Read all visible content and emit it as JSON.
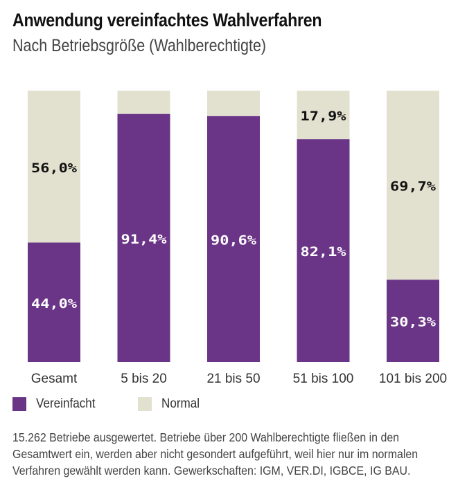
{
  "chart_data": {
    "type": "bar",
    "stacked": true,
    "percent": true,
    "title": "Anwendung vereinfachtes Wahlverfahren",
    "subtitle": "Nach Betriebsgröße (Wahlberechtigte)",
    "categories": [
      "Gesamt",
      "5 bis 20",
      "21 bis 50",
      "51 bis 100",
      "101 bis 200"
    ],
    "series": [
      {
        "name": "Vereinfacht",
        "color": "#6b3587",
        "values": [
          44.0,
          91.4,
          90.6,
          82.1,
          30.3
        ],
        "labels": [
          "44,0%",
          "91,4%",
          "90,6%",
          "82,1%",
          "30,3%"
        ]
      },
      {
        "name": "Normal",
        "color": "#e2e1cf",
        "values": [
          56.0,
          8.6,
          9.4,
          17.9,
          69.7
        ],
        "labels": [
          "56,0%",
          "",
          "",
          "17,9%",
          "69,7%"
        ]
      }
    ],
    "ylim": [
      0,
      100
    ],
    "grid": false,
    "legend_position": "bottom-left"
  },
  "footnote": {
    "lines": [
      "15.262 Betriebe ausgewertet. Betriebe über 200 Wahlberechtigte fließen in den",
      "Gesamtwert ein, werden aber nicht gesondert aufgeführt, weil hier nur im normalen",
      "Verfahren gewählt werden kann. Gewerkschaften: IGM, VER.DI, IGBCE, IG BAU."
    ]
  }
}
